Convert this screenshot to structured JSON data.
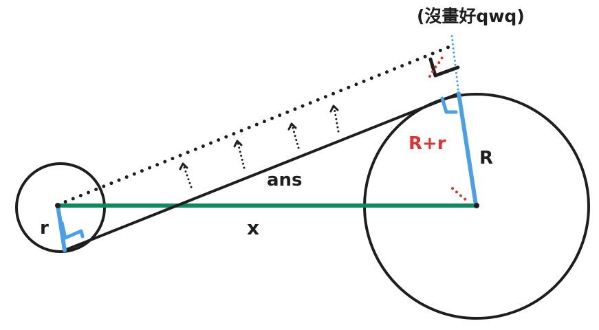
{
  "note": "(沒畫好qwq)",
  "labels": {
    "ans": "ans",
    "x": "x",
    "small_radius": "r",
    "large_radius": "R",
    "sum_radius": "R+r"
  },
  "colors": {
    "ink": "#1e1e1e",
    "blue": "#4a9fe8",
    "green": "#0f8a5f",
    "red": "#e03131",
    "note": "#1e1e1e"
  }
}
